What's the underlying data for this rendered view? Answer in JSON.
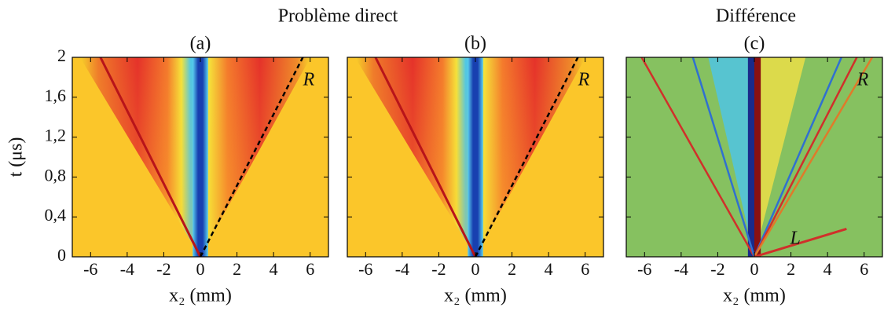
{
  "group_titles": [
    "Problème direct",
    "Différence"
  ],
  "chart_data": [
    {
      "type": "heatmap",
      "title": "(a)",
      "xlabel": "x₂ (mm)",
      "ylabel": "t (μs)",
      "xlim": [
        -7,
        7
      ],
      "xticks": [
        -6,
        -4,
        -2,
        0,
        2,
        4,
        6
      ],
      "ylim": [
        0,
        2
      ],
      "yticks": [
        0,
        {
          "value": 0.4,
          "label": "0,4"
        },
        {
          "value": 0.8,
          "label": "0,8"
        },
        {
          "value": 1.2,
          "label": "1,2"
        },
        {
          "value": 1.6,
          "label": "1,6"
        },
        2
      ],
      "annotations": [
        "R"
      ]
    },
    {
      "type": "heatmap",
      "title": "(b)",
      "xlabel": "x₂ (mm)",
      "xlim": [
        -7,
        7
      ],
      "xticks": [
        -6,
        -4,
        -2,
        0,
        2,
        4,
        6
      ],
      "ylim": [
        0,
        2
      ],
      "yticks": [
        0,
        {
          "value": 0.4,
          "label": "0,4"
        },
        {
          "value": 0.8,
          "label": "0,8"
        },
        {
          "value": 1.2,
          "label": "1,2"
        },
        {
          "value": 1.6,
          "label": "1,6"
        },
        2
      ],
      "annotations": [
        "R"
      ]
    },
    {
      "type": "heatmap-diff",
      "title": "(c)",
      "xlabel": "x₂ (mm)",
      "xlim": [
        -7,
        7
      ],
      "xticks": [
        -6,
        -4,
        -2,
        0,
        2,
        4,
        6
      ],
      "ylim": [
        0,
        2
      ],
      "yticks": [
        0,
        {
          "value": 0.4,
          "label": "0,4"
        },
        {
          "value": 0.8,
          "label": "0,8"
        },
        {
          "value": 1.2,
          "label": "1,2"
        },
        {
          "value": 1.6,
          "label": "1,6"
        },
        2
      ],
      "annotations": [
        "R",
        "L"
      ]
    }
  ]
}
